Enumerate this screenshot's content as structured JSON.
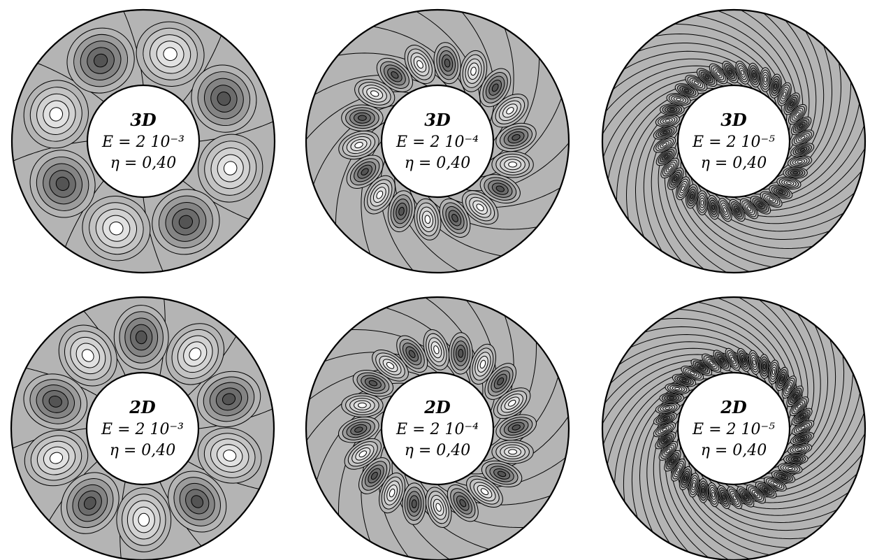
{
  "panels": [
    {
      "dim": "3D",
      "ekman": "E = 2 10⁻³",
      "eta": "η = 0,40",
      "modes": 4
    },
    {
      "dim": "3D",
      "ekman": "E = 2 10⁻⁴",
      "eta": "η = 0,40",
      "modes": 9
    },
    {
      "dim": "3D",
      "ekman": "E = 2 10⁻⁵",
      "eta": "η = 0,40",
      "modes": 18
    },
    {
      "dim": "2D",
      "ekman": "E = 2 10⁻³",
      "eta": "η = 0,40",
      "modes": 5
    },
    {
      "dim": "2D",
      "ekman": "E = 2 10⁻⁴",
      "eta": "η = 0,40",
      "modes": 10
    },
    {
      "dim": "2D",
      "ekman": "E = 2 10⁻⁵",
      "eta": "η = 0,40",
      "modes": 20
    }
  ],
  "colors": {
    "background_fill": "#b4b4b4",
    "positive_cell": "#ffffff",
    "negative_cell": "#5f5f5f",
    "contour_line": "#000000"
  }
}
